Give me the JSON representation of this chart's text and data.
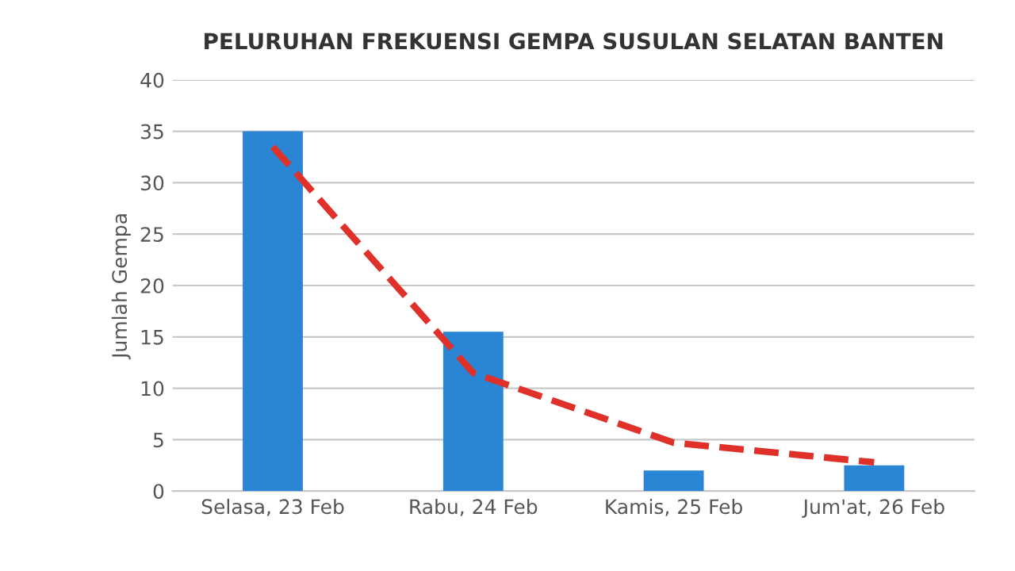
{
  "chart_data": {
    "type": "bar",
    "title": "PELURUHAN FREKUENSI GEMPA SUSULAN SELATAN BANTEN",
    "ylabel": "Jumlah Gempa",
    "categories": [
      "Selasa, 23 Feb",
      "Rabu, 24 Feb",
      "Kamis, 25 Feb",
      "Jum'at, 26 Feb"
    ],
    "series": [
      {
        "color": "#2a86d4",
        "values": [
          35,
          15.5,
          2,
          2.5
        ]
      },
      {
        "type": "line",
        "color": "#e0302a",
        "line_style": "dashed",
        "values": [
          33.5,
          11.5,
          4.7,
          2.8
        ]
      }
    ],
    "ylim": [
      0,
      40
    ],
    "yticks": [
      0,
      5,
      10,
      15,
      20,
      25,
      30,
      35,
      40
    ],
    "grid": "y",
    "legend": false
  }
}
